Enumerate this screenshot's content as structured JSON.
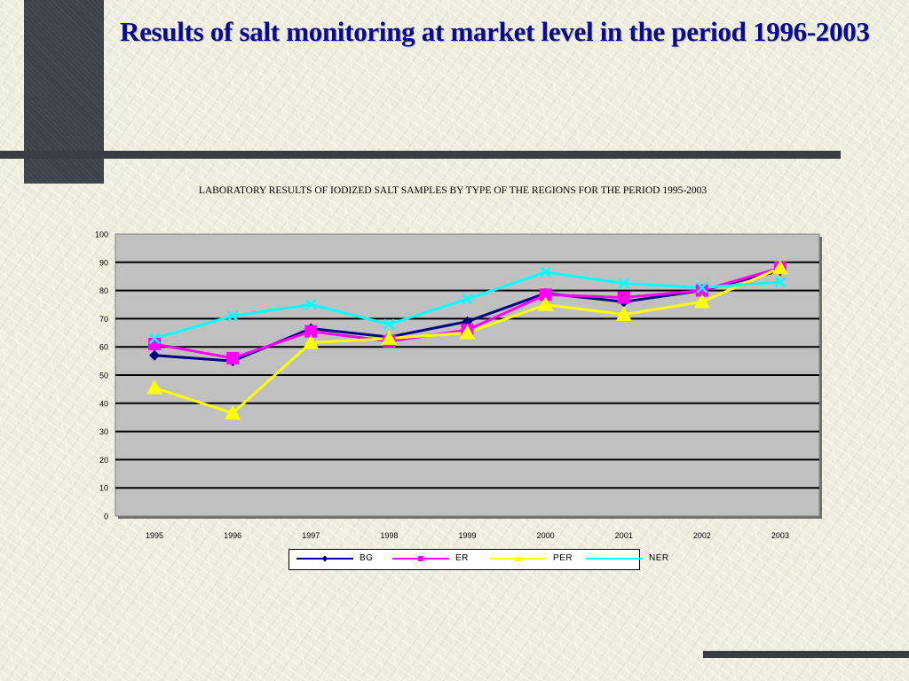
{
  "slide": {
    "title": "Results of salt monitoring at market level in the period 1996-2003"
  },
  "chart_data": {
    "type": "line",
    "title": "LABORATORY RESULTS OF IODIZED SALT SAMPLES BY TYPE OF THE REGIONS FOR THE PERIOD 1995-2003",
    "xlabel": "",
    "ylabel": "",
    "categories": [
      "1995",
      "1996",
      "1997",
      "1998",
      "1999",
      "2000",
      "2001",
      "2002",
      "2003"
    ],
    "ylim": [
      0,
      100
    ],
    "yticks": [
      0,
      10,
      20,
      30,
      40,
      50,
      60,
      70,
      80,
      90,
      100
    ],
    "grid": true,
    "legend_position": "bottom",
    "plot_background": "#c0c0c0",
    "series": [
      {
        "name": "BG",
        "color": "#000080",
        "marker": "diamond",
        "values": [
          57,
          55,
          66.5,
          63.5,
          69,
          79,
          76,
          80,
          87
        ]
      },
      {
        "name": "ER",
        "color": "#ff00ff",
        "marker": "square",
        "values": [
          61,
          56,
          65.5,
          62,
          66,
          78.5,
          77.5,
          80,
          88
        ]
      },
      {
        "name": "PER",
        "color": "#ffff00",
        "marker": "triangle",
        "values": [
          45.5,
          36.5,
          61.5,
          63,
          65,
          75,
          71.5,
          76,
          88
        ]
      },
      {
        "name": "NER",
        "color": "#00ffff",
        "marker": "x",
        "values": [
          63,
          71,
          75,
          68,
          77,
          86.5,
          82.5,
          81,
          83
        ]
      }
    ]
  }
}
